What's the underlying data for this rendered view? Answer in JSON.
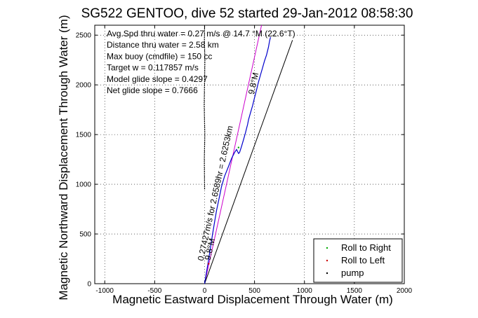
{
  "chart_data": {
    "type": "line",
    "title": "SG522 GENTOO, dive 52 started 29-Jan-2012 08:58:30",
    "xlabel": "Magnetic Eastward Displacement Through Water (m)",
    "ylabel": "Magnetic Northward Displacement Through Water (m)",
    "xlim": [
      -1100,
      2000
    ],
    "ylim": [
      0,
      2600
    ],
    "xticks": [
      -1000,
      -500,
      0,
      500,
      1000,
      1500,
      2000
    ],
    "yticks": [
      0,
      500,
      1000,
      1500,
      2000,
      2500
    ],
    "grid": true,
    "annotations": [
      "Avg.Spd thru water =  0.27 m/s @  14.7   °M (22.6°T)",
      "Distance thru water =  2.58 km",
      "Max buoy (cmdfile) = 150 cc",
      "Target w = 0.117857 m/s",
      "Model glide slope = 0.4297",
      "Net glide slope = 0.7666"
    ],
    "line_labels": {
      "heading_upper": "9.8°M",
      "heading_lower": "9.8°M",
      "speed": "0.27427m/s for 2.6589hr = 2.6253km"
    },
    "legend": {
      "placement": "bottom-right",
      "entries": [
        "Roll to Right",
        "Roll to Left",
        "pump"
      ]
    },
    "series": [
      {
        "name": "track",
        "color": "#0000cc",
        "x": [
          0,
          20,
          40,
          60,
          80,
          100,
          120,
          150,
          170,
          200,
          240,
          270,
          300,
          320,
          330,
          340,
          350,
          370,
          390,
          410,
          420,
          430,
          440,
          460,
          480,
          500,
          520,
          540,
          560,
          580,
          600,
          620,
          640,
          650,
          660
        ],
        "y": [
          0,
          120,
          240,
          370,
          500,
          620,
          740,
          880,
          980,
          1080,
          1180,
          1260,
          1320,
          1350,
          1330,
          1310,
          1320,
          1380,
          1450,
          1520,
          1560,
          1600,
          1650,
          1720,
          1790,
          1870,
          1950,
          2030,
          2100,
          2170,
          2240,
          2300,
          2380,
          2440,
          2480
        ]
      }
    ],
    "reference_lines": [
      {
        "name": "magenta",
        "color": "#cc00cc",
        "x": [
          0,
          570
        ],
        "y": [
          0,
          2600
        ]
      },
      {
        "name": "black",
        "color": "#000000",
        "x": [
          0,
          880
        ],
        "y": [
          0,
          2450
        ]
      }
    ],
    "pump_track": {
      "color": "#000000",
      "x": [
        0,
        -3,
        2,
        -4,
        0,
        3,
        -2,
        0
      ],
      "y": [
        950,
        1250,
        1500,
        1800,
        2050,
        2250,
        2450,
        2600
      ]
    },
    "roll_points": {
      "right": {
        "color": "#00aa00",
        "x": [
          340
        ],
        "y": [
          1370
        ]
      },
      "left": {
        "color": "#cc0000",
        "x": [
          40
        ],
        "y": [
          200
        ]
      }
    }
  }
}
